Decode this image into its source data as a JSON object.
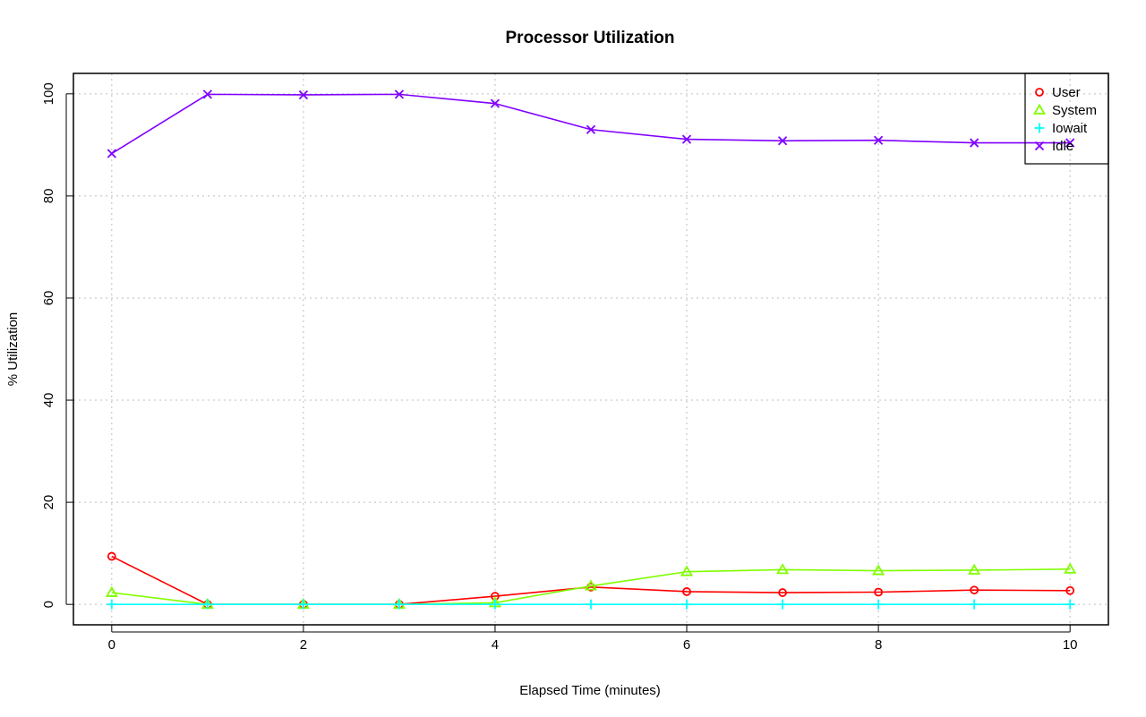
{
  "chart_data": {
    "type": "line",
    "title": "Processor Utilization",
    "xlabel": "Elapsed Time (minutes)",
    "ylabel": "% Utilization",
    "x": [
      0,
      1,
      2,
      3,
      4,
      5,
      6,
      7,
      8,
      9,
      10
    ],
    "xlim": [
      -0.4,
      10.4
    ],
    "ylim": [
      -4,
      104
    ],
    "xticks": [
      0,
      2,
      4,
      6,
      8,
      10
    ],
    "yticks": [
      0,
      20,
      40,
      60,
      80,
      100
    ],
    "grid": true,
    "legend_position": "top-right",
    "series": [
      {
        "name": "User",
        "color": "#ff0000",
        "marker": "circle",
        "values": [
          9.4,
          0,
          0,
          0,
          1.6,
          3.4,
          2.5,
          2.3,
          2.4,
          2.8,
          2.7
        ]
      },
      {
        "name": "System",
        "color": "#80ff00",
        "marker": "triangle",
        "values": [
          2.3,
          0,
          0,
          0,
          0.3,
          3.6,
          6.4,
          6.8,
          6.6,
          6.7,
          6.9
        ]
      },
      {
        "name": "Iowait",
        "color": "#00ffff",
        "marker": "plus",
        "values": [
          0,
          0,
          0,
          0,
          0,
          0,
          0,
          0,
          0,
          0,
          0
        ]
      },
      {
        "name": "Idle",
        "color": "#8000ff",
        "marker": "cross",
        "values": [
          88.3,
          99.9,
          99.8,
          99.9,
          98.1,
          93.0,
          91.1,
          90.8,
          90.9,
          90.4,
          90.4
        ]
      }
    ]
  }
}
